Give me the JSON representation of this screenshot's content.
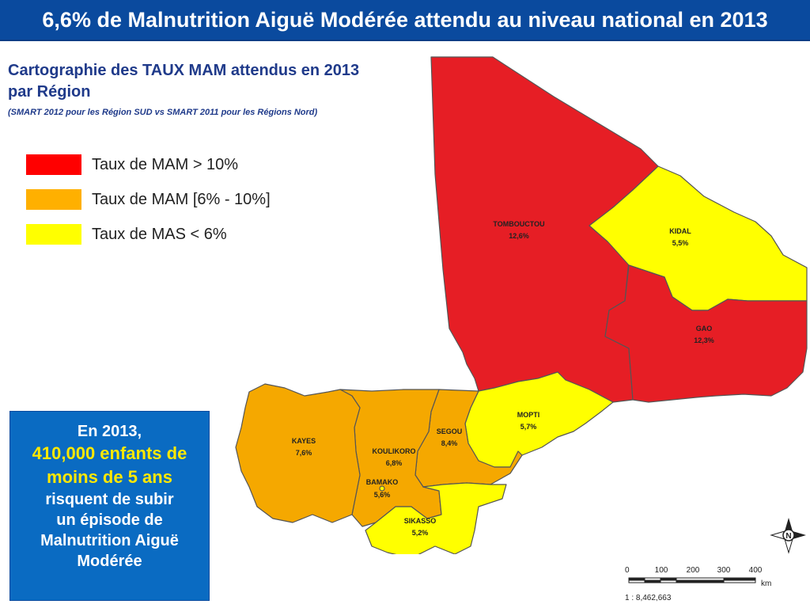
{
  "title": "6,6% de Malnutrition Aiguë Modérée attendu au niveau national en 2013",
  "subtitle": "Cartographie des TAUX MAM attendus en 2013 par Région",
  "subtitle_note": "(SMART 2012 pour les Région SUD vs SMART 2011 pour les Régions Nord)",
  "legend": [
    {
      "label": "Taux de MAM > 10%",
      "color": "#ff0000"
    },
    {
      "label": "Taux de MAM [6% - 10%]",
      "color": "#ffb000"
    },
    {
      "label": "Taux de MAS < 6%",
      "color": "#ffff00"
    }
  ],
  "colors": {
    "high": "#e61e25",
    "mid": "#f5a800",
    "low": "#ffff00",
    "border": "#555555"
  },
  "regions": {
    "tombouctou": {
      "name": "TOMBOUCTOU",
      "value": "12,6%"
    },
    "kidal": {
      "name": "KIDAL",
      "value": "5,5%"
    },
    "gao": {
      "name": "GAO",
      "value": "12,3%"
    },
    "mopti": {
      "name": "MOPTI",
      "value": "5,7%"
    },
    "segou": {
      "name": "SEGOU",
      "value": "8,4%"
    },
    "koulikoro": {
      "name": "KOULIKORO",
      "value": "6,8%"
    },
    "kayes": {
      "name": "KAYES",
      "value": "7,6%"
    },
    "bamako": {
      "name": "BAMAKO",
      "value": "5,6%"
    },
    "sikasso": {
      "name": "SIKASSO",
      "value": "5,2%"
    }
  },
  "info_box": {
    "line1": "En 2013,",
    "highlight1": "410,000 enfants de",
    "highlight2": "moins de 5 ans",
    "line2": "risquent de subir",
    "line3": "un épisode de",
    "line4": "Malnutrition Aiguë",
    "line5": "Modérée"
  },
  "scale": {
    "ticks": [
      "0",
      "100",
      "200",
      "300",
      "400"
    ],
    "unit": "km",
    "ratio": "1 : 8,462,663"
  },
  "north_label": "N"
}
